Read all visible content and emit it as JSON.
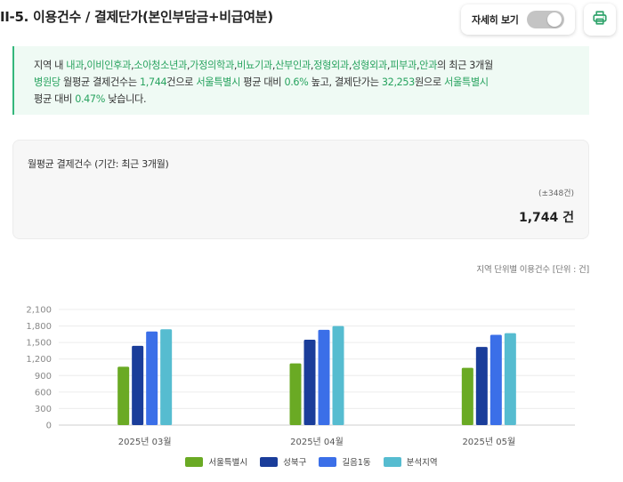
{
  "header": {
    "title": "II-5. 이용건수 / 결제단가(본인부담금+비급여분)",
    "detail_toggle_label": "자세히 보기",
    "detail_toggle_on": false,
    "print_icon": "printer-icon"
  },
  "summary": {
    "line1": [
      {
        "t": "지역 내 ",
        "g": false
      },
      {
        "t": "내과",
        "g": true
      },
      {
        "t": ",",
        "g": false
      },
      {
        "t": "이비인후과",
        "g": true
      },
      {
        "t": ",",
        "g": false
      },
      {
        "t": "소아청소년과",
        "g": true
      },
      {
        "t": ",",
        "g": false
      },
      {
        "t": "가정의학과",
        "g": true
      },
      {
        "t": ",",
        "g": false
      },
      {
        "t": "비뇨기과",
        "g": true
      },
      {
        "t": ",",
        "g": false
      },
      {
        "t": "산부인과",
        "g": true
      },
      {
        "t": ",",
        "g": false
      },
      {
        "t": "정형외과",
        "g": true
      },
      {
        "t": ",",
        "g": false
      },
      {
        "t": "성형외과",
        "g": true
      },
      {
        "t": ",",
        "g": false
      },
      {
        "t": "피부과",
        "g": true
      },
      {
        "t": ",",
        "g": false
      },
      {
        "t": "안과",
        "g": true
      },
      {
        "t": "의 최근 3개월",
        "g": false
      }
    ],
    "line2": [
      {
        "t": "병원당",
        "g": true
      },
      {
        "t": " 월평균 결제건수는 ",
        "g": false
      },
      {
        "t": "1,744",
        "g": true
      },
      {
        "t": "건으로 ",
        "g": false
      },
      {
        "t": "서울특별시",
        "g": true
      },
      {
        "t": " 평균 대비 ",
        "g": false
      },
      {
        "t": "0.6%",
        "g": true
      },
      {
        "t": " 높고, 결제단가는 ",
        "g": false
      },
      {
        "t": "32,253",
        "g": true
      },
      {
        "t": "원으로 ",
        "g": false
      },
      {
        "t": "서울특별시",
        "g": true
      }
    ],
    "line3": [
      {
        "t": "평균 대비 ",
        "g": false
      },
      {
        "t": "0.47%",
        "g": true
      },
      {
        "t": " 낮습니다.",
        "g": false
      }
    ]
  },
  "metric": {
    "title": "월평균 결제건수 (기간: 최근 3개월)",
    "diff": "(±348건)",
    "value": "1,744 건"
  },
  "unit_note": "지역 단위별 이용건수 [단위 : 건]",
  "colors": {
    "seoul": "#6aaa24",
    "seongbuk": "#1a3d9a",
    "gireum": "#3b6fe8",
    "bunseok": "#56bcd0",
    "accent_green": "#28a35f"
  },
  "chart_data": {
    "type": "bar",
    "categories": [
      "2025년 03월",
      "2025년 04월",
      "2025년 05월"
    ],
    "yticks": [
      "0",
      "300",
      "600",
      "900",
      "1,200",
      "1,500",
      "1,800",
      "2,100"
    ],
    "ylim": [
      0,
      2100
    ],
    "grid": true,
    "legend_position": "bottom",
    "series": [
      {
        "name": "서울특별시",
        "color": "#6aaa24",
        "values": [
          1060,
          1120,
          1040
        ]
      },
      {
        "name": "성북구",
        "color": "#1a3d9a",
        "values": [
          1440,
          1550,
          1420
        ]
      },
      {
        "name": "길음1동",
        "color": "#3b6fe8",
        "values": [
          1700,
          1730,
          1640
        ]
      },
      {
        "name": "분석지역",
        "color": "#56bcd0",
        "values": [
          1740,
          1800,
          1670
        ]
      }
    ]
  }
}
